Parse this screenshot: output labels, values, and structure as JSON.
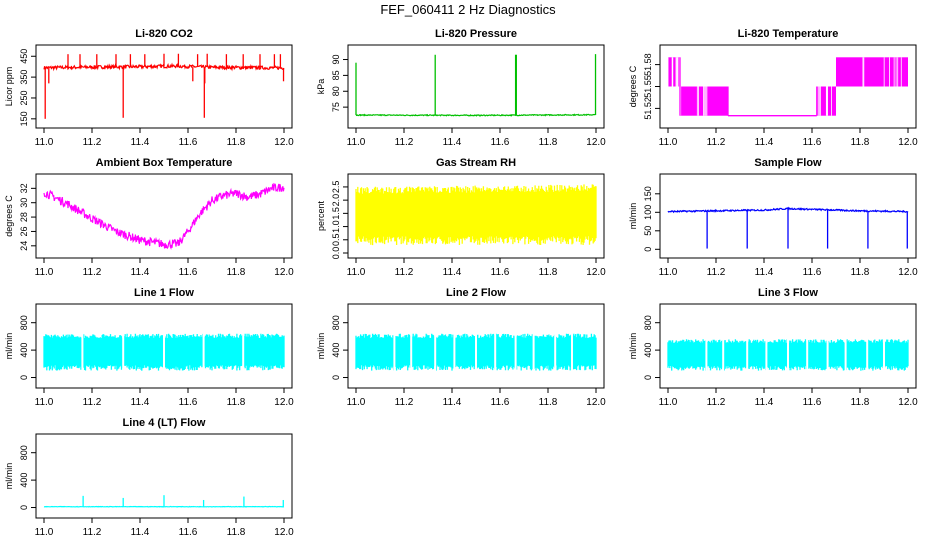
{
  "page_title": "FEF_060411  2 Hz Diagnostics",
  "chart_data": [
    {
      "type": "line",
      "title": "Li-820 CO2",
      "ylabel": "Licor ppm",
      "color": "#ff0000",
      "xlim": [
        11.0,
        12.0
      ],
      "ylim": [
        130,
        480
      ],
      "xticks": [
        "11.0",
        "11.2",
        "11.4",
        "11.6",
        "11.8",
        "12.0"
      ],
      "yticks": [
        {
          "v": 150,
          "label": "150"
        },
        {
          "v": 250,
          "label": "250"
        },
        {
          "v": 350,
          "label": "350"
        },
        {
          "v": 450,
          "label": "450"
        }
      ],
      "baseline": [
        [
          11.0,
          395
        ],
        [
          11.2,
          398
        ],
        [
          11.4,
          400
        ],
        [
          11.55,
          403
        ],
        [
          11.7,
          397
        ],
        [
          11.9,
          395
        ],
        [
          12.0,
          394
        ]
      ],
      "noise": 8,
      "band": false,
      "spikes_up": [
        [
          11.1,
          460
        ],
        [
          11.15,
          460
        ],
        [
          11.22,
          460
        ],
        [
          11.3,
          460
        ],
        [
          11.36,
          460
        ],
        [
          11.42,
          460
        ],
        [
          11.5,
          462
        ],
        [
          11.56,
          462
        ],
        [
          11.64,
          460
        ],
        [
          11.68,
          462
        ],
        [
          11.76,
          460
        ],
        [
          11.83,
          460
        ],
        [
          11.9,
          460
        ],
        [
          11.96,
          460
        ],
        [
          11.985,
          460
        ]
      ],
      "spikes_down": [
        [
          11.005,
          150
        ],
        [
          11.02,
          320
        ],
        [
          11.33,
          155
        ],
        [
          11.668,
          155
        ],
        [
          11.62,
          330
        ],
        [
          11.67,
          320
        ],
        [
          11.998,
          330
        ]
      ]
    },
    {
      "type": "line",
      "title": "Li-820 Pressure",
      "ylabel": "kPa",
      "color": "#00c000",
      "xlim": [
        11.0,
        12.0
      ],
      "ylim": [
        70,
        93
      ],
      "xticks": [
        "11.0",
        "11.2",
        "11.4",
        "11.6",
        "11.8",
        "12.0"
      ],
      "yticks": [
        {
          "v": 75,
          "label": "75"
        },
        {
          "v": 80,
          "label": "80"
        },
        {
          "v": 85,
          "label": "85"
        },
        {
          "v": 90,
          "label": "90"
        }
      ],
      "baseline": [
        [
          11.0,
          72.5
        ],
        [
          11.5,
          72.4
        ],
        [
          12.0,
          72.6
        ]
      ],
      "noise": 0.15,
      "band": false,
      "spikes_up": [
        [
          11.0,
          89
        ],
        [
          11.33,
          91.5
        ],
        [
          11.665,
          91.5
        ],
        [
          11.668,
          91.5
        ],
        [
          11.998,
          91.7
        ]
      ],
      "spikes_down": []
    },
    {
      "type": "step",
      "title": "Li-820 Temperature",
      "ylabel": "degrees C",
      "color": "#ff00ff",
      "xlim": [
        11.0,
        12.0
      ],
      "ylim": [
        51.5,
        51.6
      ],
      "xticks": [
        "11.0",
        "11.2",
        "11.4",
        "11.6",
        "11.8",
        "12.0"
      ],
      "yticks": [
        {
          "v": 51.52,
          "label": "51.52"
        },
        {
          "v": 51.55,
          "label": "51.55"
        },
        {
          "v": 51.58,
          "label": "51.58"
        }
      ],
      "levels": [
        51.51,
        51.55,
        51.59
      ],
      "segments": [
        [
          11.0,
          11.05,
          1,
          2
        ],
        [
          11.05,
          11.25,
          0,
          1
        ],
        [
          11.25,
          11.62,
          0,
          0
        ],
        [
          11.62,
          11.7,
          0,
          1
        ],
        [
          11.7,
          12.0,
          1,
          2
        ]
      ]
    },
    {
      "type": "line",
      "title": "Ambient Box Temperature",
      "ylabel": "degrees C",
      "color": "#ff00ff",
      "xlim": [
        11.0,
        12.0
      ],
      "ylim": [
        23,
        33.3
      ],
      "xticks": [
        "11.0",
        "11.2",
        "11.4",
        "11.6",
        "11.8",
        "12.0"
      ],
      "yticks": [
        {
          "v": 24,
          "label": "24"
        },
        {
          "v": 26,
          "label": "26"
        },
        {
          "v": 28,
          "label": "28"
        },
        {
          "v": 30,
          "label": "30"
        },
        {
          "v": 32,
          "label": "32"
        }
      ],
      "baseline": [
        [
          11.0,
          31.5
        ],
        [
          11.1,
          29.8
        ],
        [
          11.2,
          27.8
        ],
        [
          11.3,
          26.0
        ],
        [
          11.4,
          24.8
        ],
        [
          11.5,
          24.2
        ],
        [
          11.56,
          24.3
        ],
        [
          11.6,
          26.0
        ],
        [
          11.65,
          28.5
        ],
        [
          11.7,
          30.3
        ],
        [
          11.75,
          31.0
        ],
        [
          11.8,
          31.3
        ],
        [
          11.85,
          30.8
        ],
        [
          11.9,
          31.2
        ],
        [
          11.95,
          32.0
        ],
        [
          12.0,
          32.2
        ]
      ],
      "noise": 0.6,
      "band": false,
      "spikes_up": [],
      "spikes_down": []
    },
    {
      "type": "band",
      "title": "Gas Stream RH",
      "ylabel": "percent",
      "color": "#ffff00",
      "xlim": [
        11.0,
        12.0
      ],
      "ylim": [
        0,
        2.8
      ],
      "xticks": [
        "11.0",
        "11.2",
        "11.4",
        "11.6",
        "11.8",
        "12.0"
      ],
      "yticks": [
        {
          "v": 0.0,
          "label": "0.0"
        },
        {
          "v": 0.5,
          "label": "0.5"
        },
        {
          "v": 1.0,
          "label": "1.0"
        },
        {
          "v": 1.5,
          "label": "1.5"
        },
        {
          "v": 2.0,
          "label": "2.0"
        },
        {
          "v": 2.5,
          "label": "2.5"
        }
      ],
      "upper": [
        [
          11.0,
          2.5
        ],
        [
          11.5,
          2.55
        ],
        [
          12.0,
          2.6
        ]
      ],
      "lower": [
        [
          11.0,
          0.3
        ],
        [
          11.5,
          0.3
        ],
        [
          12.0,
          0.3
        ]
      ],
      "gaps": []
    },
    {
      "type": "line",
      "title": "Sample Flow",
      "ylabel": "ml/min",
      "color": "#0000ff",
      "xlim": [
        11.0,
        12.0
      ],
      "ylim": [
        -10,
        190
      ],
      "xticks": [
        "11.0",
        "11.2",
        "11.4",
        "11.6",
        "11.8",
        "12.0"
      ],
      "yticks": [
        {
          "v": 0,
          "label": "0"
        },
        {
          "v": 50,
          "label": "50"
        },
        {
          "v": 100,
          "label": "100"
        },
        {
          "v": 150,
          "label": "150"
        }
      ],
      "baseline": [
        [
          11.0,
          102
        ],
        [
          11.2,
          104
        ],
        [
          11.4,
          106
        ],
        [
          11.5,
          110
        ],
        [
          11.6,
          108
        ],
        [
          11.8,
          104
        ],
        [
          12.0,
          102
        ]
      ],
      "noise": 2,
      "band": false,
      "spikes_up": [],
      "spikes_down": [
        [
          11.163,
          2
        ],
        [
          11.33,
          2
        ],
        [
          11.5,
          2
        ],
        [
          11.665,
          2
        ],
        [
          11.833,
          2
        ],
        [
          11.997,
          2
        ]
      ]
    },
    {
      "type": "band",
      "title": "Line 1 Flow",
      "ylabel": "ml/min",
      "color": "#00ffff",
      "xlim": [
        11.0,
        12.0
      ],
      "ylim": [
        -80,
        1000
      ],
      "xticks": [
        "11.0",
        "11.2",
        "11.4",
        "11.6",
        "11.8",
        "12.0"
      ],
      "yticks": [
        {
          "v": 0,
          "label": "0"
        },
        {
          "v": 400,
          "label": "400"
        },
        {
          "v": 800,
          "label": "800"
        }
      ],
      "upper": [
        [
          11.0,
          640
        ],
        [
          12.0,
          640
        ]
      ],
      "lower": [
        [
          11.0,
          100
        ],
        [
          12.0,
          100
        ]
      ],
      "gaps": [
        11.16,
        11.33,
        11.5,
        11.665,
        11.83
      ]
    },
    {
      "type": "band",
      "title": "Line 2 Flow",
      "ylabel": "ml/min",
      "color": "#00ffff",
      "xlim": [
        11.0,
        12.0
      ],
      "ylim": [
        -80,
        1000
      ],
      "xticks": [
        "11.0",
        "11.2",
        "11.4",
        "11.6",
        "11.8",
        "12.0"
      ],
      "yticks": [
        {
          "v": 0,
          "label": "0"
        },
        {
          "v": 400,
          "label": "400"
        },
        {
          "v": 800,
          "label": "800"
        }
      ],
      "upper": [
        [
          11.0,
          640
        ],
        [
          12.0,
          640
        ]
      ],
      "lower": [
        [
          11.0,
          100
        ],
        [
          12.0,
          100
        ]
      ],
      "gaps": [
        11.16,
        11.23,
        11.33,
        11.41,
        11.5,
        11.58,
        11.665,
        11.74,
        11.83,
        11.9
      ]
    },
    {
      "type": "band",
      "title": "Line 3 Flow",
      "ylabel": "ml/min",
      "color": "#00ffff",
      "xlim": [
        11.0,
        12.0
      ],
      "ylim": [
        -80,
        1000
      ],
      "xticks": [
        "11.0",
        "11.2",
        "11.4",
        "11.6",
        "11.8",
        "12.0"
      ],
      "yticks": [
        {
          "v": 0,
          "label": "0"
        },
        {
          "v": 400,
          "label": "400"
        },
        {
          "v": 800,
          "label": "800"
        }
      ],
      "upper": [
        [
          11.0,
          560
        ],
        [
          12.0,
          560
        ]
      ],
      "lower": [
        [
          11.0,
          100
        ],
        [
          12.0,
          100
        ]
      ],
      "gaps": [
        11.16,
        11.23,
        11.33,
        11.41,
        11.5,
        11.58,
        11.665,
        11.74,
        11.83,
        11.9
      ]
    },
    {
      "type": "line",
      "title": "Line 4 (LT) Flow",
      "ylabel": "ml/min",
      "color": "#00ffff",
      "xlim": [
        11.0,
        12.0
      ],
      "ylim": [
        -80,
        1000
      ],
      "xticks": [
        "11.0",
        "11.2",
        "11.4",
        "11.6",
        "11.8",
        "12.0"
      ],
      "yticks": [
        {
          "v": 0,
          "label": "0"
        },
        {
          "v": 400,
          "label": "400"
        },
        {
          "v": 800,
          "label": "800"
        }
      ],
      "baseline": [
        [
          11.0,
          12
        ],
        [
          12.0,
          12
        ]
      ],
      "noise": 3,
      "band": false,
      "spikes_up": [
        [
          11.163,
          170
        ],
        [
          11.33,
          140
        ],
        [
          11.5,
          180
        ],
        [
          11.665,
          110
        ],
        [
          11.833,
          160
        ],
        [
          11.997,
          110
        ]
      ],
      "spikes_down": []
    }
  ]
}
